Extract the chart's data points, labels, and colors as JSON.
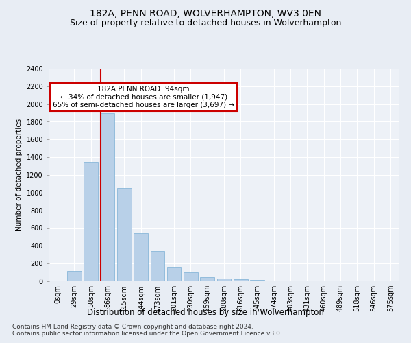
{
  "title": "182A, PENN ROAD, WOLVERHAMPTON, WV3 0EN",
  "subtitle": "Size of property relative to detached houses in Wolverhampton",
  "xlabel": "Distribution of detached houses by size in Wolverhampton",
  "ylabel": "Number of detached properties",
  "bar_labels": [
    "0sqm",
    "29sqm",
    "58sqm",
    "86sqm",
    "115sqm",
    "144sqm",
    "173sqm",
    "201sqm",
    "230sqm",
    "259sqm",
    "288sqm",
    "316sqm",
    "345sqm",
    "374sqm",
    "403sqm",
    "431sqm",
    "460sqm",
    "489sqm",
    "518sqm",
    "546sqm",
    "575sqm"
  ],
  "bar_values": [
    10,
    120,
    1350,
    1900,
    1050,
    540,
    340,
    160,
    100,
    50,
    30,
    20,
    15,
    10,
    5,
    3,
    5,
    1,
    1,
    1,
    1
  ],
  "bar_color": "#b8d0e8",
  "bar_edge_color": "#7aafd4",
  "annotation_text_line1": "182A PENN ROAD: 94sqm",
  "annotation_text_line2": "← 34% of detached houses are smaller (1,947)",
  "annotation_text_line3": "65% of semi-detached houses are larger (3,697) →",
  "annotation_box_color": "#ffffff",
  "annotation_box_edge": "#cc0000",
  "red_line_color": "#cc0000",
  "ylim": [
    0,
    2400
  ],
  "yticks": [
    0,
    200,
    400,
    600,
    800,
    1000,
    1200,
    1400,
    1600,
    1800,
    2000,
    2200,
    2400
  ],
  "footer1": "Contains HM Land Registry data © Crown copyright and database right 2024.",
  "footer2": "Contains public sector information licensed under the Open Government Licence v3.0.",
  "bg_color": "#e8edf4",
  "plot_bg_color": "#edf1f7",
  "title_fontsize": 10,
  "subtitle_fontsize": 9,
  "xlabel_fontsize": 8.5,
  "ylabel_fontsize": 7.5,
  "tick_fontsize": 7,
  "footer_fontsize": 6.5,
  "annot_fontsize": 7.5
}
